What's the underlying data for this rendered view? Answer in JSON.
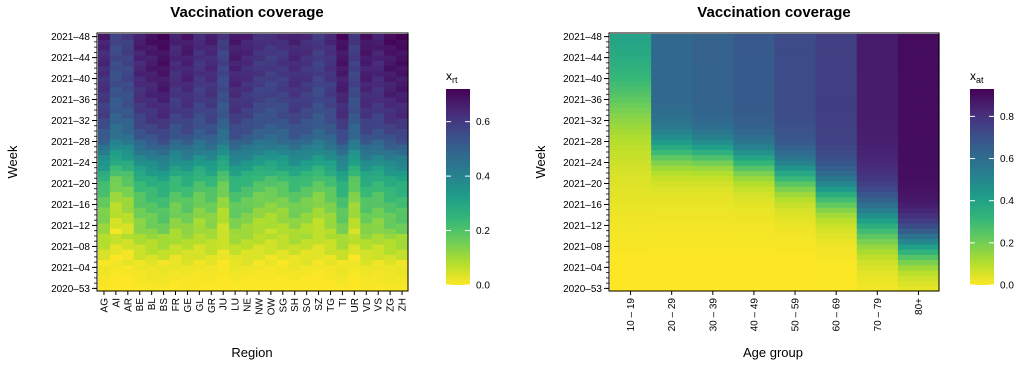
{
  "chart_data": [
    {
      "type": "heatmap",
      "title": "Vaccination coverage",
      "xlabel": "Region",
      "ylabel": "Week",
      "legend_title": "x",
      "legend_subscript": "rt",
      "legend_ticks": [
        0.0,
        0.2,
        0.4,
        0.6
      ],
      "legend_tick_labels": [
        "0.0",
        "0.2",
        "0.4",
        "0.6"
      ],
      "color_range": [
        0,
        0.72
      ],
      "colormap": "viridis-reversed",
      "categories": [
        "AG",
        "AI",
        "AR",
        "BE",
        "BL",
        "BS",
        "FR",
        "GE",
        "GL",
        "GR",
        "JU",
        "LU",
        "NE",
        "NW",
        "OW",
        "SG",
        "SH",
        "SO",
        "SZ",
        "TG",
        "TI",
        "UR",
        "VD",
        "VS",
        "ZG",
        "ZH"
      ],
      "y_tick_labels": [
        "2021–48",
        "2021–44",
        "2021–40",
        "2021–36",
        "2021–32",
        "2021–28",
        "2021–24",
        "2021–20",
        "2021–16",
        "2021–12",
        "2021–08",
        "2021–04",
        "2020–53"
      ],
      "weeks": 49,
      "start_week": "2020–53",
      "end_week": "2021–48",
      "coverage_by_week_approx": {
        "2020-53": 0.0,
        "2021-04": 0.02,
        "2021-08": 0.08,
        "2021-12": 0.13,
        "2021-16": 0.18,
        "2021-20": 0.25,
        "2021-24": 0.38,
        "2021-28": 0.52,
        "2021-32": 0.58,
        "2021-36": 0.61,
        "2021-40": 0.63,
        "2021-44": 0.64,
        "2021-48": 0.66
      },
      "region_offsets_approx": [
        0.0,
        -0.08,
        -0.06,
        0.01,
        0.03,
        0.05,
        0.0,
        0.02,
        -0.02,
        0.0,
        -0.06,
        0.02,
        0.0,
        -0.03,
        -0.04,
        -0.03,
        0.0,
        -0.02,
        -0.05,
        -0.02,
        0.04,
        -0.05,
        0.03,
        0.01,
        0.04,
        0.05
      ]
    },
    {
      "type": "heatmap",
      "title": "Vaccination coverage",
      "xlabel": "Age group",
      "ylabel": "Week",
      "legend_title": "x",
      "legend_subscript": "at",
      "legend_ticks": [
        0.0,
        0.2,
        0.4,
        0.6,
        0.8
      ],
      "legend_tick_labels": [
        "0.0",
        "0.2",
        "0.4",
        "0.6",
        "0.8"
      ],
      "color_range": [
        0,
        0.93
      ],
      "colormap": "viridis-reversed",
      "categories": [
        "10 – 19",
        "20 – 29",
        "30 – 39",
        "40 – 49",
        "50 – 59",
        "60 – 69",
        "70 – 79",
        "80+"
      ],
      "y_tick_labels": [
        "2021–48",
        "2021–44",
        "2021–40",
        "2021–36",
        "2021–32",
        "2021–28",
        "2021–24",
        "2021–20",
        "2021–16",
        "2021–12",
        "2021–08",
        "2021–04",
        "2020–53"
      ],
      "weeks": 49,
      "start_week": "2020–53",
      "end_week": "2021–48",
      "age_groups_approx": [
        {
          "group": "10 – 19",
          "start_week": 24,
          "end_week": 48,
          "final": 0.42
        },
        {
          "group": "20 – 29",
          "start_week": 21,
          "end_week": 32,
          "final": 0.62
        },
        {
          "group": "30 – 39",
          "start_week": 21,
          "end_week": 31,
          "final": 0.64
        },
        {
          "group": "40 – 49",
          "start_week": 19,
          "end_week": 30,
          "final": 0.67
        },
        {
          "group": "50 – 59",
          "start_week": 16,
          "end_week": 28,
          "final": 0.72
        },
        {
          "group": "60 – 69",
          "start_week": 12,
          "end_week": 25,
          "final": 0.76
        },
        {
          "group": "70 – 79",
          "start_week": 5,
          "end_week": 22,
          "final": 0.86
        },
        {
          "group": "80+",
          "start_week": 2,
          "end_week": 15,
          "final": 0.9
        }
      ]
    }
  ]
}
